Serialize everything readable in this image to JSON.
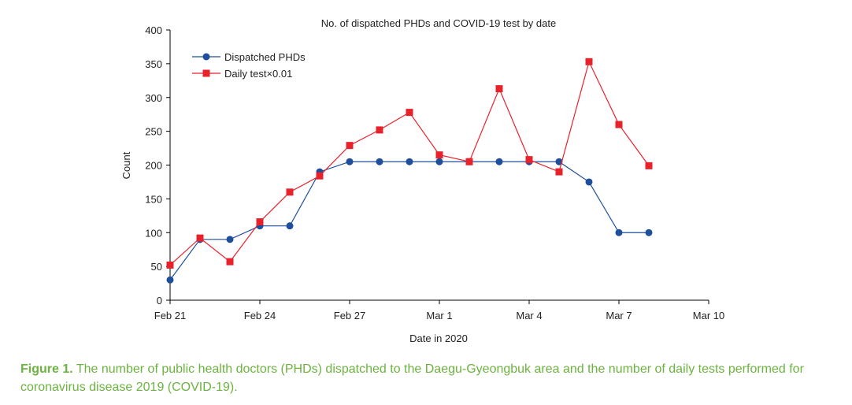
{
  "chart_data": {
    "type": "line",
    "title": "No. of dispatched PHDs and COVID-19 test by date",
    "xlabel": "Date in 2020",
    "ylabel": "Count",
    "ylim": [
      0,
      400
    ],
    "yticks": [
      0,
      50,
      100,
      150,
      200,
      250,
      300,
      350,
      400
    ],
    "xlim": [
      0,
      18
    ],
    "xticks": [
      {
        "value": 0,
        "label": "Feb 21"
      },
      {
        "value": 3,
        "label": "Feb 24"
      },
      {
        "value": 6,
        "label": "Feb 27"
      },
      {
        "value": 9,
        "label": "Mar 1"
      },
      {
        "value": 12,
        "label": "Mar 4"
      },
      {
        "value": 15,
        "label": "Mar 7"
      },
      {
        "value": 18,
        "label": "Mar 10"
      }
    ],
    "x": [
      0,
      1,
      2,
      3,
      4,
      5,
      6,
      7,
      8,
      9,
      10,
      11,
      12,
      13,
      14,
      15,
      16
    ],
    "series": [
      {
        "name": "Dispatched PHDs",
        "color": "#1f4e9a",
        "marker": "circle",
        "values": [
          30,
          90,
          90,
          110,
          110,
          190,
          205,
          205,
          205,
          205,
          205,
          205,
          205,
          205,
          175,
          100,
          100
        ]
      },
      {
        "name": "Daily test×0.01",
        "color": "#e8222b",
        "marker": "square",
        "values": [
          52,
          92,
          57,
          116,
          160,
          184,
          229,
          252,
          278,
          215,
          205,
          313,
          208,
          190,
          353,
          260,
          199
        ]
      }
    ],
    "legend": "top-left",
    "grid": false
  },
  "caption": {
    "label": "Figure 1.",
    "text": "The number of public health doctors (PHDs) dispatched to the Daegu-Gyeongbuk area and the number of daily tests performed for coronavirus disease 2019 (COVID-19)."
  }
}
